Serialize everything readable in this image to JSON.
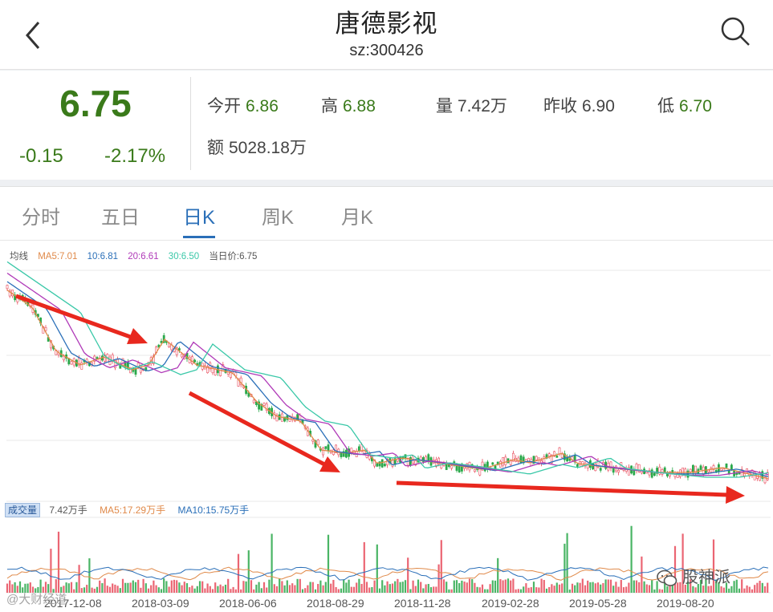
{
  "header": {
    "title": "唐德影视",
    "code": "sz:300426"
  },
  "quote": {
    "price": "6.75",
    "change": "-0.15",
    "change_pct": "-2.17%",
    "open_label": "今开",
    "open": "6.86",
    "high_label": "高",
    "high": "6.88",
    "volume_label": "量",
    "volume": "7.42万",
    "prev_close_label": "昨收",
    "prev_close": "6.90",
    "low_label": "低",
    "low": "6.70",
    "amount_label": "额",
    "amount": "5028.18万"
  },
  "tabs": [
    {
      "label": "分时"
    },
    {
      "label": "五日"
    },
    {
      "label": "日K"
    },
    {
      "label": "周K"
    },
    {
      "label": "月K"
    }
  ],
  "ma_legend": {
    "label": "均线",
    "ma5": "MA5:7.01",
    "ma10": "10:6.81",
    "ma20": "20:6.61",
    "ma30": "30:6.50",
    "current": "当日价:6.75"
  },
  "volume_legend": {
    "tag": "成交量",
    "vol": "7.42万手",
    "ma5": "MA5:17.29万手",
    "ma10": "MA10:15.75万手"
  },
  "xaxis": [
    "2017-12-08",
    "2018-03-09",
    "2018-06-06",
    "2018-08-29",
    "2018-11-28",
    "2019-02-28",
    "2019-05-28",
    "2019-08-20"
  ],
  "watermarks": {
    "left": "@大财经道",
    "right": "股神派"
  },
  "colors": {
    "down": "#3a7a1a",
    "active_tab": "#2a6fb8",
    "ma5": "#e08a4a",
    "ma10": "#2a6fb8",
    "ma20": "#b03ab8",
    "ma30": "#3ac8a8",
    "candle_up": "#e84a5a",
    "candle_down": "#2aa84a",
    "arrow": "#e8281e"
  },
  "icons": {
    "back": "chevron-left-icon",
    "search": "search-icon"
  }
}
